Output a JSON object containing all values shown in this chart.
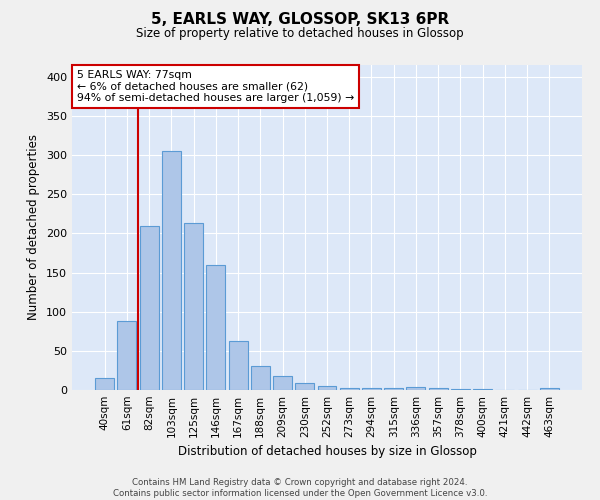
{
  "title": "5, EARLS WAY, GLOSSOP, SK13 6PR",
  "subtitle": "Size of property relative to detached houses in Glossop",
  "xlabel": "Distribution of detached houses by size in Glossop",
  "ylabel": "Number of detached properties",
  "bin_labels": [
    "40sqm",
    "61sqm",
    "82sqm",
    "103sqm",
    "125sqm",
    "146sqm",
    "167sqm",
    "188sqm",
    "209sqm",
    "230sqm",
    "252sqm",
    "273sqm",
    "294sqm",
    "315sqm",
    "336sqm",
    "357sqm",
    "378sqm",
    "400sqm",
    "421sqm",
    "442sqm",
    "463sqm"
  ],
  "bar_values": [
    15,
    88,
    210,
    305,
    213,
    160,
    63,
    31,
    18,
    9,
    5,
    3,
    2,
    2,
    4,
    2,
    1,
    1,
    0,
    0,
    3
  ],
  "bar_color": "#aec6e8",
  "bar_edge_color": "#5b9bd5",
  "background_color": "#dde8f8",
  "grid_color": "#ffffff",
  "vline_x": 1.5,
  "vline_color": "#cc0000",
  "annotation_text": "5 EARLS WAY: 77sqm\n← 6% of detached houses are smaller (62)\n94% of semi-detached houses are larger (1,059) →",
  "annotation_box_color": "#ffffff",
  "annotation_box_edge": "#cc0000",
  "footer_line1": "Contains HM Land Registry data © Crown copyright and database right 2024.",
  "footer_line2": "Contains public sector information licensed under the Open Government Licence v3.0.",
  "ylim": [
    0,
    415
  ],
  "yticks": [
    0,
    50,
    100,
    150,
    200,
    250,
    300,
    350,
    400
  ]
}
